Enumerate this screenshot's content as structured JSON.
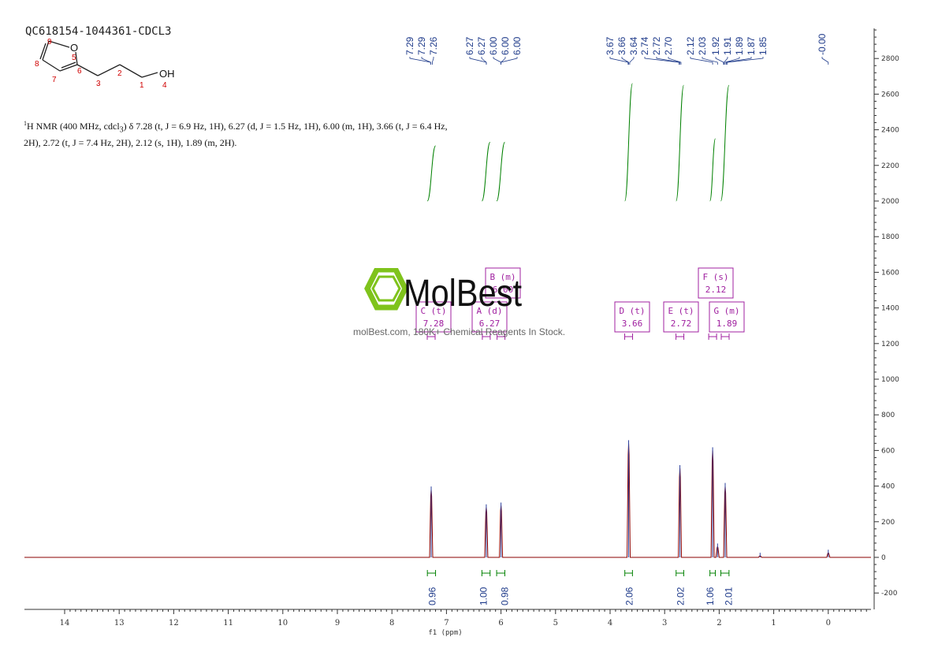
{
  "sample_id": "QC618154-1044361-CDCL3",
  "description_prefix": "H NMR (400 MHz, cdcl",
  "description_sup": "1",
  "description_sub": "3",
  "description_rest": ") δ 7.28 (t, J = 6.9 Hz, 1H), 6.27 (d, J = 1.5 Hz, 1H), 6.00 (m, 1H), 3.66 (t, J = 6.4 Hz, 2H), 2.72 (t, J = 7.4 Hz, 2H), 2.12 (s, 1H), 1.89 (m, 2H).",
  "structure": {
    "atom_labels": [
      "9",
      "O",
      "5",
      "8",
      "6",
      "7",
      "3",
      "2",
      "1",
      "OH",
      "4"
    ]
  },
  "watermark": {
    "brand": "MolBest",
    "tagline": "molBest.com, 180K+ Chemical Reagents In Stock."
  },
  "colors": {
    "spectrum": "#8b0000",
    "integral": "#008000",
    "peak_label": "#1e3a8a",
    "multiplet_box": "#a020a0",
    "axis": "#333333",
    "watermark_green": "#7fc31c"
  },
  "chart_data": {
    "type": "line",
    "title": "",
    "xlabel": "f1 (ppm)",
    "ylabel": "",
    "xlim": [
      14.7,
      -0.8
    ],
    "ylim": [
      -300,
      3000
    ],
    "x_reversed": true,
    "x_ticks": [
      14,
      13,
      12,
      11,
      10,
      9,
      8,
      7,
      6,
      5,
      4,
      3,
      2,
      1,
      0
    ],
    "y_ticks": [
      -200,
      0,
      200,
      400,
      600,
      800,
      1000,
      1200,
      1400,
      1600,
      1800,
      2000,
      2200,
      2400,
      2600,
      2800
    ],
    "grid": false,
    "peaks": [
      {
        "ppm": 7.28,
        "height": 380
      },
      {
        "ppm": 6.27,
        "height": 280
      },
      {
        "ppm": 6.0,
        "height": 290
      },
      {
        "ppm": 3.66,
        "height": 640
      },
      {
        "ppm": 2.72,
        "height": 500
      },
      {
        "ppm": 2.12,
        "height": 600
      },
      {
        "ppm": 2.03,
        "height": 60
      },
      {
        "ppm": 1.89,
        "height": 400
      },
      {
        "ppm": 1.25,
        "height": 8
      },
      {
        "ppm": 0.0,
        "height": 25
      }
    ],
    "peak_labels": [
      {
        "text": "7.29",
        "ppm": 7.29
      },
      {
        "text": "7.29",
        "ppm": 7.29
      },
      {
        "text": "7.26",
        "ppm": 7.26
      },
      {
        "text": "6.27",
        "ppm": 6.27
      },
      {
        "text": "6.27",
        "ppm": 6.27
      },
      {
        "text": "6.00",
        "ppm": 6.0
      },
      {
        "text": "6.00",
        "ppm": 6.0
      },
      {
        "text": "6.00",
        "ppm": 6.0
      },
      {
        "text": "3.67",
        "ppm": 3.67
      },
      {
        "text": "3.66",
        "ppm": 3.66
      },
      {
        "text": "3.64",
        "ppm": 3.64
      },
      {
        "text": "2.74",
        "ppm": 2.74
      },
      {
        "text": "2.72",
        "ppm": 2.72
      },
      {
        "text": "2.70",
        "ppm": 2.7
      },
      {
        "text": "2.12",
        "ppm": 2.12
      },
      {
        "text": "2.03",
        "ppm": 2.03
      },
      {
        "text": "1.92",
        "ppm": 1.92
      },
      {
        "text": "1.91",
        "ppm": 1.91
      },
      {
        "text": "1.89",
        "ppm": 1.89
      },
      {
        "text": "1.87",
        "ppm": 1.87
      },
      {
        "text": "1.85",
        "ppm": 1.85
      },
      {
        "text": "-0.00",
        "ppm": 0.0
      }
    ],
    "integrals": [
      {
        "from": 7.35,
        "to": 7.2,
        "value": "0.96",
        "curve_start": 2000,
        "curve_end": 2310
      },
      {
        "from": 6.35,
        "to": 6.2,
        "value": "1.00",
        "curve_start": 2000,
        "curve_end": 2330
      },
      {
        "from": 6.08,
        "to": 5.93,
        "value": "0.98",
        "curve_start": 2000,
        "curve_end": 2330
      },
      {
        "from": 3.73,
        "to": 3.59,
        "value": "2.06",
        "curve_start": 2000,
        "curve_end": 2660
      },
      {
        "from": 2.79,
        "to": 2.65,
        "value": "2.02",
        "curve_start": 2000,
        "curve_end": 2650
      },
      {
        "from": 2.17,
        "to": 2.07,
        "value": "1.06",
        "curve_start": 2000,
        "curve_end": 2350
      },
      {
        "from": 1.97,
        "to": 1.82,
        "value": "2.01",
        "curve_start": 2000,
        "curve_end": 2650
      }
    ],
    "multiplets": [
      {
        "id": "C",
        "type": "t",
        "shift": "7.28",
        "ppm": 7.28
      },
      {
        "id": "A",
        "type": "d",
        "shift": "6.27",
        "ppm": 6.27
      },
      {
        "id": "B",
        "type": "m",
        "shift": "6.00",
        "ppm": 6.0
      },
      {
        "id": "D",
        "type": "t",
        "shift": "3.66",
        "ppm": 3.66
      },
      {
        "id": "E",
        "type": "t",
        "shift": "2.72",
        "ppm": 2.72
      },
      {
        "id": "F",
        "type": "s",
        "shift": "2.12",
        "ppm": 2.12
      },
      {
        "id": "G",
        "type": "m",
        "shift": "1.89",
        "ppm": 1.89
      }
    ]
  }
}
